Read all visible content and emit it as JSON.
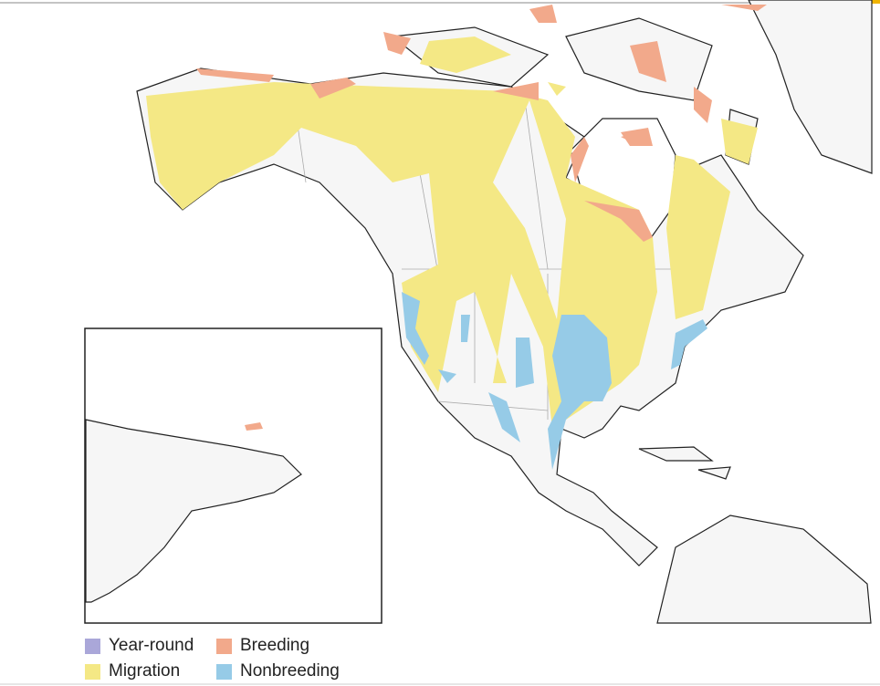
{
  "legend": [
    {
      "label": "Year-round",
      "color": "#aaa7d9"
    },
    {
      "label": "Breeding",
      "color": "#f2a98b"
    },
    {
      "label": "Migration",
      "color": "#f4e885"
    },
    {
      "label": "Nonbreeding",
      "color": "#96cbe7"
    }
  ]
}
